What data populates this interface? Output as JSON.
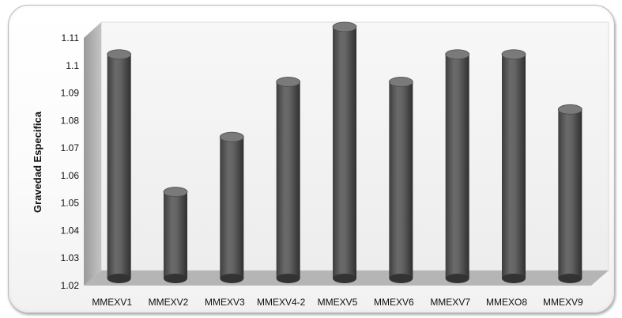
{
  "chart_data": {
    "type": "bar",
    "style": "3d-cylinder",
    "categories": [
      "MMEXV1",
      "MMEXV2",
      "MMEXV3",
      "MMEXV4-2",
      "MMEXV5",
      "MMEXV6",
      "MMEXV7",
      "MMEXO8",
      "MMEXV9"
    ],
    "values": [
      1.1,
      1.05,
      1.07,
      1.09,
      1.11,
      1.09,
      1.1,
      1.1,
      1.08
    ],
    "title": "",
    "xlabel": "",
    "ylabel": "Gravedad Especifica",
    "ylim": [
      1.02,
      1.11
    ],
    "yticks": [
      "1.02",
      "1.03",
      "1.04",
      "1.05",
      "1.06",
      "1.07",
      "1.08",
      "1.09",
      "1.1",
      "1.11"
    ],
    "grid": false,
    "legend": "none",
    "colors": {
      "bar": "#5a5a5a",
      "bar_top": "#7a7a7a",
      "floor": "#b3b3b3",
      "back_wall": "#f4f4f4",
      "side_wall": "#a9a9a9"
    }
  }
}
